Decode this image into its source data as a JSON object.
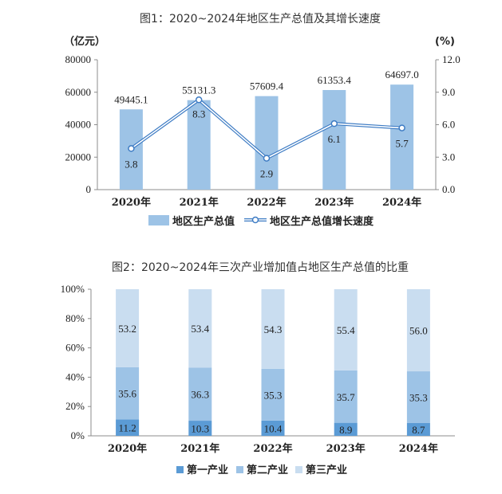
{
  "chart_data": [
    {
      "type": "bar",
      "title": "图1：2020~2024年地区生产总值及其增长速度",
      "categories": [
        "2020年",
        "2021年",
        "2022年",
        "2023年",
        "2024年"
      ],
      "y_left_unit": "（亿元）",
      "y_right_unit": "(%)",
      "y_left_ticks": [
        "0",
        "20000",
        "40000",
        "60000",
        "80000"
      ],
      "y_right_ticks": [
        "0.0",
        "3.0",
        "6.0",
        "9.0",
        "12.0"
      ],
      "ylim_left": [
        0,
        80000
      ],
      "ylim_right": [
        0,
        12
      ],
      "series": [
        {
          "name": "地区生产总值",
          "type": "bar",
          "axis": "left",
          "values": [
            49445.1,
            55131.3,
            57609.4,
            61353.4,
            64697.0
          ],
          "labels": [
            "49445.1",
            "55131.3",
            "57609.4",
            "61353.4",
            "64697.0"
          ],
          "color": "#9dc3e6"
        },
        {
          "name": "地区生产总值增长速度",
          "type": "line",
          "axis": "right",
          "values": [
            3.8,
            8.3,
            2.9,
            6.1,
            5.7
          ],
          "labels": [
            "3.8",
            "8.3",
            "2.9",
            "6.1",
            "5.7"
          ],
          "color": "#3e7cc4"
        }
      ],
      "legend_position": "bottom"
    },
    {
      "type": "bar",
      "stacked": true,
      "title": "图2：2020~2024年三次产业增加值占地区生产总值的比重",
      "categories": [
        "2020年",
        "2021年",
        "2022年",
        "2023年",
        "2024年"
      ],
      "y_ticks": [
        "0%",
        "20%",
        "40%",
        "60%",
        "80%",
        "100%"
      ],
      "ylim": [
        0,
        100
      ],
      "series": [
        {
          "name": "第一产业",
          "values": [
            11.2,
            10.3,
            10.4,
            8.9,
            8.7
          ],
          "labels": [
            "11.2",
            "10.3",
            "10.4",
            "8.9",
            "8.7"
          ],
          "color": "#5b9bd5"
        },
        {
          "name": "第二产业",
          "values": [
            35.6,
            36.3,
            35.3,
            35.7,
            35.3
          ],
          "labels": [
            "35.6",
            "36.3",
            "35.3",
            "35.7",
            "35.3"
          ],
          "color": "#9dc3e6"
        },
        {
          "name": "第三产业",
          "values": [
            53.2,
            53.4,
            54.3,
            55.4,
            56.0
          ],
          "labels": [
            "53.2",
            "53.4",
            "54.3",
            "55.4",
            "56.0"
          ],
          "color": "#c9ddf0"
        }
      ],
      "legend_position": "bottom"
    }
  ]
}
